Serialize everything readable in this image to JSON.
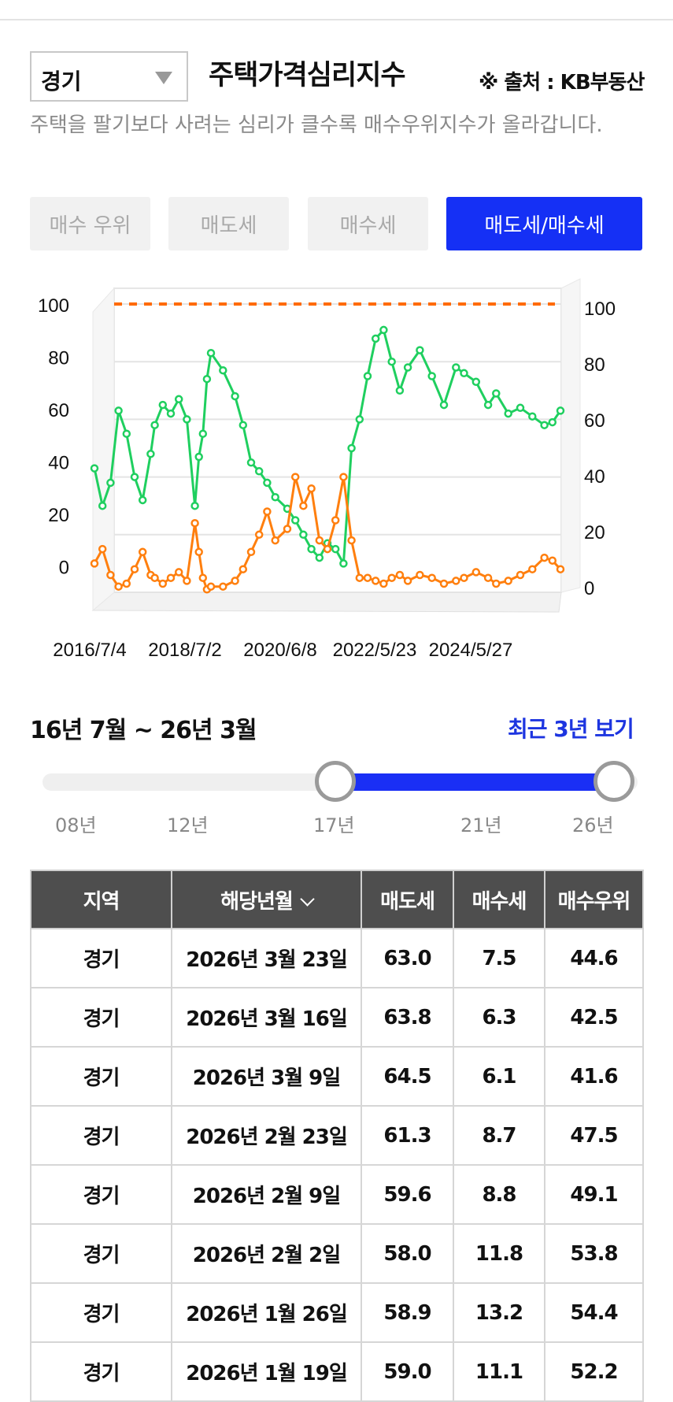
{
  "header": {
    "region_value": "경기",
    "title": "주택가격심리지수",
    "source": "※ 출처 : KB부동산",
    "description": "주택을 팔기보다 사려는 심리가 클수록 매수우위지수가 올라갑니다."
  },
  "tabs": [
    {
      "label": "매수 우위",
      "active": false
    },
    {
      "label": "매도세",
      "active": false
    },
    {
      "label": "매수세",
      "active": false
    },
    {
      "label": "매도세/매수세",
      "active": true
    }
  ],
  "chart_data": {
    "type": "line",
    "x_tick_labels": [
      "2016/7/4",
      "2018/7/2",
      "2020/6/8",
      "2022/5/23",
      "2024/5/27"
    ],
    "y_left_ticks": [
      0,
      20,
      40,
      60,
      80,
      100
    ],
    "y_right_ticks": [
      0,
      20,
      40,
      60,
      80,
      100
    ],
    "ylim": [
      0,
      100
    ],
    "xlim": [
      "2016-07-04",
      "2026-03-23"
    ],
    "reference_line": {
      "value": 100,
      "color": "#ff6a00",
      "style": "dashed"
    },
    "series": [
      {
        "color": "#1fcf5f",
        "x": [
          "2016-07",
          "2016-09",
          "2016-11",
          "2017-01",
          "2017-03",
          "2017-05",
          "2017-07",
          "2017-09",
          "2017-10",
          "2017-12",
          "2018-02",
          "2018-04",
          "2018-06",
          "2018-08",
          "2018-09",
          "2018-10",
          "2018-11",
          "2018-12",
          "2019-03",
          "2019-06",
          "2019-08",
          "2019-10",
          "2019-12",
          "2020-02",
          "2020-04",
          "2020-07",
          "2020-09",
          "2020-11",
          "2021-01",
          "2021-03",
          "2021-05",
          "2021-07",
          "2021-09",
          "2021-11",
          "2022-01",
          "2022-03",
          "2022-05",
          "2022-07",
          "2022-09",
          "2022-11",
          "2023-01",
          "2023-04",
          "2023-07",
          "2023-10",
          "2024-01",
          "2024-03",
          "2024-06",
          "2024-09",
          "2024-11",
          "2025-02",
          "2025-05",
          "2025-08",
          "2025-11",
          "2026-01",
          "2026-03"
        ],
        "y": [
          43,
          30,
          38,
          63,
          55,
          40,
          32,
          48,
          58,
          65,
          62,
          67,
          60,
          30,
          47,
          55,
          74,
          83,
          77,
          68,
          58,
          45,
          42,
          38,
          33,
          29,
          25,
          20,
          15,
          12,
          17,
          15,
          10,
          50,
          60,
          75,
          88,
          91,
          80,
          70,
          78,
          84,
          75,
          65,
          78,
          76,
          73,
          65,
          69,
          62,
          64,
          61,
          58,
          59,
          63
        ]
      },
      {
        "color": "#ff7f0e",
        "x": [
          "2016-07",
          "2016-09",
          "2016-11",
          "2017-01",
          "2017-03",
          "2017-05",
          "2017-07",
          "2017-09",
          "2017-10",
          "2017-12",
          "2018-02",
          "2018-04",
          "2018-06",
          "2018-08",
          "2018-09",
          "2018-10",
          "2018-11",
          "2018-12",
          "2019-03",
          "2019-06",
          "2019-08",
          "2019-10",
          "2019-12",
          "2020-02",
          "2020-04",
          "2020-07",
          "2020-09",
          "2020-11",
          "2021-01",
          "2021-03",
          "2021-05",
          "2021-07",
          "2021-09",
          "2021-11",
          "2022-01",
          "2022-03",
          "2022-05",
          "2022-07",
          "2022-09",
          "2022-11",
          "2023-01",
          "2023-04",
          "2023-07",
          "2023-10",
          "2024-01",
          "2024-03",
          "2024-06",
          "2024-09",
          "2024-11",
          "2025-02",
          "2025-05",
          "2025-08",
          "2025-11",
          "2026-01",
          "2026-03"
        ],
        "y": [
          10,
          15,
          6,
          2,
          3,
          8,
          14,
          6,
          5,
          3,
          5,
          7,
          4,
          24,
          14,
          5,
          1,
          2,
          2,
          4,
          8,
          14,
          20,
          28,
          18,
          22,
          40,
          30,
          36,
          18,
          15,
          25,
          40,
          18,
          5,
          5,
          4,
          3,
          5,
          6,
          4,
          6,
          5,
          3,
          4,
          5,
          7,
          5,
          3,
          4,
          6,
          8,
          12,
          11,
          8
        ]
      }
    ]
  },
  "range": {
    "label": "16년 7월 ~ 26년 3월",
    "recent_link": "최근 3년 보기",
    "ticks": [
      "08년",
      "12년",
      "17년",
      "21년",
      "26년"
    ]
  },
  "table": {
    "headers": [
      "지역",
      "해당년월",
      "매도세",
      "매수세",
      "매수우위"
    ],
    "rows": [
      [
        "경기",
        "2026년 3월 23일",
        "63.0",
        "7.5",
        "44.6"
      ],
      [
        "경기",
        "2026년 3월 16일",
        "63.8",
        "6.3",
        "42.5"
      ],
      [
        "경기",
        "2026년 3월 9일",
        "64.5",
        "6.1",
        "41.6"
      ],
      [
        "경기",
        "2026년 2월 23일",
        "61.3",
        "8.7",
        "47.5"
      ],
      [
        "경기",
        "2026년 2월 9일",
        "59.6",
        "8.8",
        "49.1"
      ],
      [
        "경기",
        "2026년 2월 2일",
        "58.0",
        "11.8",
        "53.8"
      ],
      [
        "경기",
        "2026년 1월 26일",
        "58.9",
        "13.2",
        "54.4"
      ],
      [
        "경기",
        "2026년 1월 19일",
        "59.0",
        "11.1",
        "52.2"
      ]
    ]
  }
}
